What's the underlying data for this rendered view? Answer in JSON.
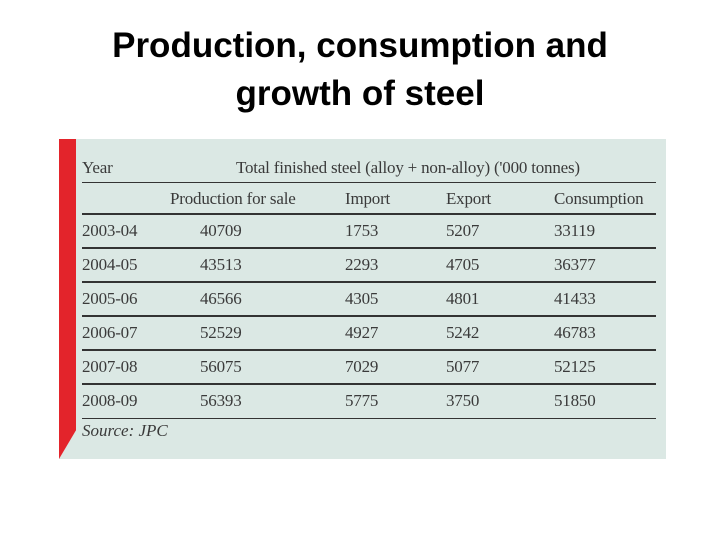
{
  "title": {
    "line1": "Production, consumption and",
    "line2": "growth of steel"
  },
  "table": {
    "year_header": "Year",
    "group_header": "Total finished steel (alloy + non-alloy) ('000 tonnes)",
    "columns": [
      "Production for sale",
      "Import",
      "Export",
      "Consumption"
    ],
    "rows": [
      {
        "year": "2003-04",
        "production": "40709",
        "import": "1753",
        "export": "5207",
        "consumption": "33119"
      },
      {
        "year": "2004-05",
        "production": "43513",
        "import": "2293",
        "export": "4705",
        "consumption": "36377"
      },
      {
        "year": "2005-06",
        "production": "46566",
        "import": "4305",
        "export": "4801",
        "consumption": "41433"
      },
      {
        "year": "2006-07",
        "production": "52529",
        "import": "4927",
        "export": "5242",
        "consumption": "46783"
      },
      {
        "year": "2007-08",
        "production": "56075",
        "import": "7029",
        "export": "5077",
        "consumption": "52125"
      },
      {
        "year": "2008-09",
        "production": "56393",
        "import": "5775",
        "export": "3750",
        "consumption": "51850"
      }
    ],
    "source": "Source: JPC"
  },
  "colors": {
    "panel": "#dbe8e4",
    "accent_bar": "#e3242b"
  }
}
